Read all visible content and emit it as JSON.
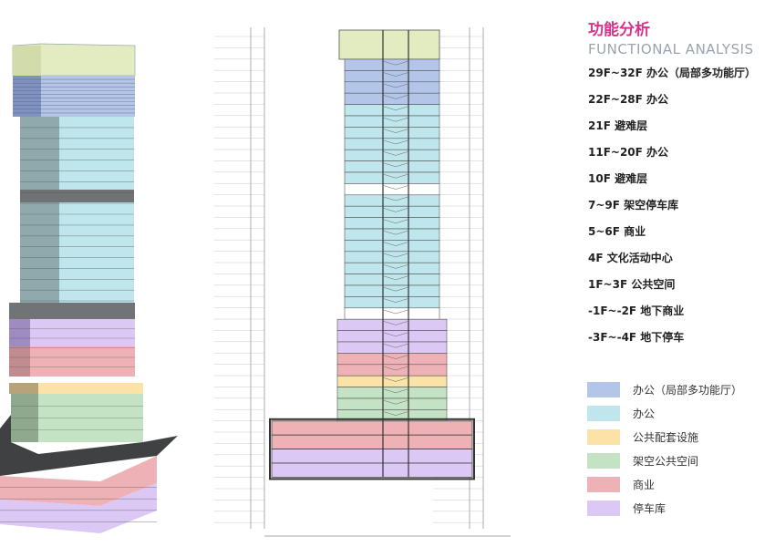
{
  "panel": {
    "title": "功能分析",
    "subtitle": "FUNCTIONAL ANALYSIS",
    "floors": [
      "29F~32F 办公（局部多功能厅）",
      "22F~28F 办公",
      "21F 避难层",
      "11F~20F 办公",
      "10F 避难层",
      "7~9F 架空停车库",
      "5~6F 商业",
      "4F 文化活动中心",
      "1F~3F 公共空间",
      "-1F~-2F 地下商业",
      "-3F~-4F 地下停车"
    ]
  },
  "legend": [
    {
      "label": "办公（局部多功能厅）",
      "color": "#b3c6ea"
    },
    {
      "label": "办公",
      "color": "#bfe6ec"
    },
    {
      "label": "公共配套设施",
      "color": "#fbe3a8"
    },
    {
      "label": "架空公共空间",
      "color": "#c4e3c4"
    },
    {
      "label": "商业",
      "color": "#eeb2b6"
    },
    {
      "label": "停车库",
      "color": "#dcc8f5"
    }
  ],
  "colors": {
    "roof": "#e2ecc0",
    "refuge": "#ffffff",
    "office_multi": "#b3c6ea",
    "office": "#bfe6ec",
    "public": "#fbe3a8",
    "open": "#c4e3c4",
    "retail": "#eeb2b6",
    "parking": "#dcc8f5"
  },
  "section_floors": [
    {
      "use": "office_multi",
      "count": 4
    },
    {
      "use": "office",
      "count": 7
    },
    {
      "use": "refuge",
      "count": 1
    },
    {
      "use": "office",
      "count": 10
    },
    {
      "use": "refuge",
      "count": 1
    },
    {
      "use": "parking",
      "count": 3
    },
    {
      "use": "retail",
      "count": 2
    },
    {
      "use": "public",
      "count": 1
    },
    {
      "use": "open",
      "count": 3
    }
  ],
  "section_basement": [
    {
      "use": "retail",
      "count": 2
    },
    {
      "use": "parking",
      "count": 2
    }
  ]
}
